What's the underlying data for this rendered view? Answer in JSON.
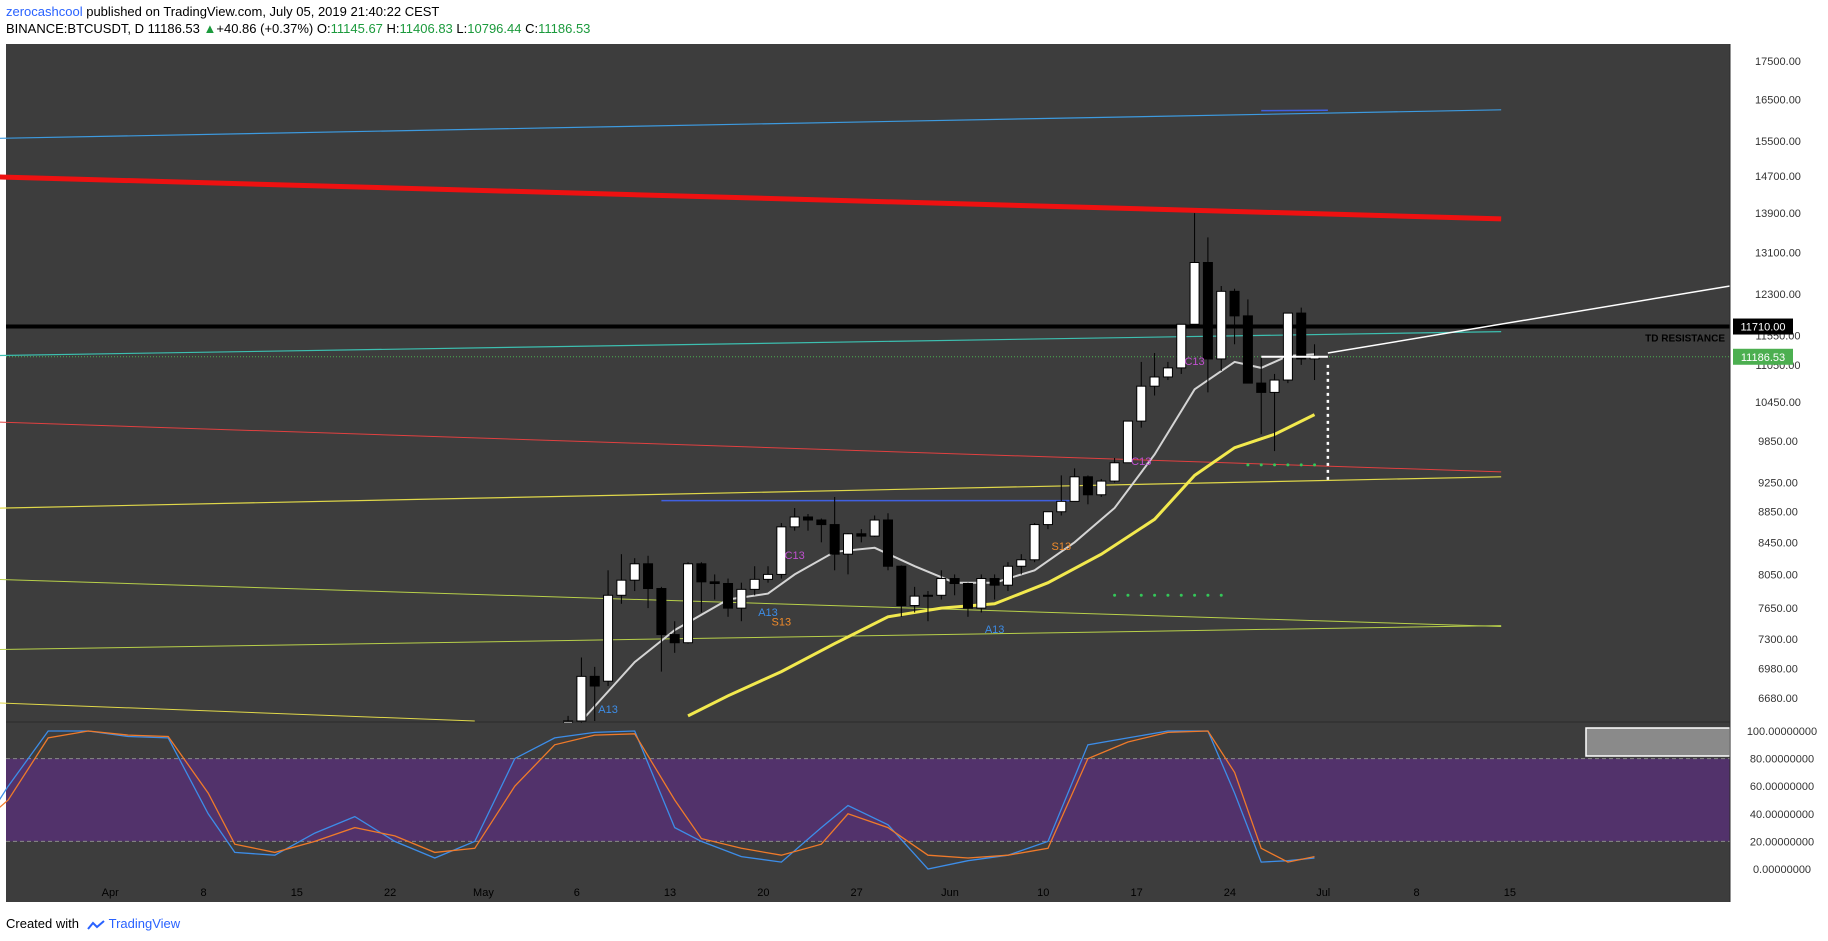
{
  "header": {
    "author": "zerocashcool",
    "published_text": " published on TradingView.com, July 05, 2019 21:40:22 CEST",
    "symbol": "BINANCE:BTCUSDT, D",
    "last": "11186.53",
    "change": "+40.86 (+0.37%)",
    "o_label": "O:",
    "o_value": "11145.67",
    "h_label": "H:",
    "h_value": "11406.83",
    "l_label": "L:",
    "l_value": "10796.44",
    "c_label": "C:",
    "c_value": "11186.53"
  },
  "footer": {
    "created_with": "Created with",
    "brand": "TradingView"
  },
  "colors": {
    "background": "#3d3d3d",
    "up_candle": "#ffffff",
    "down_candle": "#000000",
    "sma_fast": "#d4d4d4",
    "sma_slow": "#f2e94e",
    "resistance": "#ee1111",
    "stoch_k": "#3d8de8",
    "stoch_d": "#ef7a2a",
    "stoch_band": "#52326b",
    "price_badge": "#4caf50"
  },
  "chart_data": {
    "type": "candlestick",
    "x_tick_labels": [
      "Apr",
      "8",
      "15",
      "22",
      "May",
      "6",
      "13",
      "20",
      "27",
      "Jun",
      "10",
      "17",
      "24",
      "Jul",
      "8",
      "15"
    ],
    "y_tick_labels": [
      "17500.00",
      "16500.00",
      "15500.00",
      "14700.00",
      "13900.00",
      "13100.00",
      "12300.00",
      "11550.00",
      "11050.00",
      "10450.00",
      "9850.00",
      "9250.00",
      "8850.00",
      "8450.00",
      "8050.00",
      "7650.00",
      "7300.00",
      "6980.00",
      "6680.00"
    ],
    "y_scale": "log",
    "y_range": [
      6440,
      17950
    ],
    "price_labels": {
      "resistance": "11710.00",
      "last": "11186.53"
    },
    "annotation": "TD RESISTANCE",
    "td_labels": [
      {
        "text": "A13",
        "date": "2019-05-13",
        "price": 6530,
        "color": "#3d8de8"
      },
      {
        "text": "A13",
        "date": "2019-05-25",
        "price": 7560,
        "color": "#3d8de8"
      },
      {
        "text": "S13",
        "date": "2019-05-26",
        "price": 7450,
        "color": "#ef8a2a"
      },
      {
        "text": "C13",
        "date": "2019-05-27",
        "price": 8240,
        "color": "#c050d0"
      },
      {
        "text": "A13",
        "date": "2019-06-11",
        "price": 7370,
        "color": "#3d8de8"
      },
      {
        "text": "S13",
        "date": "2019-06-16",
        "price": 8350,
        "color": "#ef8a2a"
      },
      {
        "text": "C13",
        "date": "2019-06-22",
        "price": 9500,
        "color": "#c050d0"
      },
      {
        "text": "C13",
        "date": "2019-06-26",
        "price": 11050,
        "color": "#c050d0"
      }
    ],
    "candles": [
      {
        "d": "2019-05-10",
        "o": 6350,
        "h": 6500,
        "l": 6200,
        "c": 6450
      },
      {
        "d": "2019-05-11",
        "o": 6450,
        "h": 7100,
        "l": 6400,
        "c": 6900
      },
      {
        "d": "2019-05-12",
        "o": 6900,
        "h": 7000,
        "l": 6450,
        "c": 6800
      },
      {
        "d": "2019-05-13",
        "o": 6850,
        "h": 8100,
        "l": 6800,
        "c": 7800
      },
      {
        "d": "2019-05-14",
        "o": 7800,
        "h": 8300,
        "l": 7700,
        "c": 7980
      },
      {
        "d": "2019-05-15",
        "o": 7980,
        "h": 8250,
        "l": 7850,
        "c": 8180
      },
      {
        "d": "2019-05-16",
        "o": 8180,
        "h": 8280,
        "l": 7650,
        "c": 7880
      },
      {
        "d": "2019-05-17",
        "o": 7880,
        "h": 7900,
        "l": 6950,
        "c": 7350
      },
      {
        "d": "2019-05-18",
        "o": 7350,
        "h": 7500,
        "l": 7150,
        "c": 7260
      },
      {
        "d": "2019-05-19",
        "o": 7260,
        "h": 8200,
        "l": 7250,
        "c": 8180
      },
      {
        "d": "2019-05-20",
        "o": 8180,
        "h": 8200,
        "l": 7600,
        "c": 7960
      },
      {
        "d": "2019-05-21",
        "o": 7960,
        "h": 8050,
        "l": 7750,
        "c": 7940
      },
      {
        "d": "2019-05-22",
        "o": 7940,
        "h": 8000,
        "l": 7550,
        "c": 7650
      },
      {
        "d": "2019-05-23",
        "o": 7650,
        "h": 7950,
        "l": 7500,
        "c": 7870
      },
      {
        "d": "2019-05-24",
        "o": 7870,
        "h": 8150,
        "l": 7800,
        "c": 7990
      },
      {
        "d": "2019-05-25",
        "o": 7990,
        "h": 8150,
        "l": 7950,
        "c": 8050
      },
      {
        "d": "2019-05-26",
        "o": 8050,
        "h": 8700,
        "l": 8000,
        "c": 8650
      },
      {
        "d": "2019-05-27",
        "o": 8650,
        "h": 8900,
        "l": 8600,
        "c": 8780
      },
      {
        "d": "2019-05-28",
        "o": 8780,
        "h": 8820,
        "l": 8600,
        "c": 8740
      },
      {
        "d": "2019-05-29",
        "o": 8740,
        "h": 8760,
        "l": 8450,
        "c": 8680
      },
      {
        "d": "2019-05-30",
        "o": 8680,
        "h": 9050,
        "l": 8100,
        "c": 8300
      },
      {
        "d": "2019-05-31",
        "o": 8300,
        "h": 8570,
        "l": 8050,
        "c": 8560
      },
      {
        "d": "2019-06-01",
        "o": 8560,
        "h": 8620,
        "l": 8450,
        "c": 8530
      },
      {
        "d": "2019-06-02",
        "o": 8530,
        "h": 8800,
        "l": 8520,
        "c": 8740
      },
      {
        "d": "2019-06-03",
        "o": 8740,
        "h": 8830,
        "l": 8100,
        "c": 8150
      },
      {
        "d": "2019-06-04",
        "o": 8150,
        "h": 8160,
        "l": 7550,
        "c": 7680
      },
      {
        "d": "2019-06-05",
        "o": 7680,
        "h": 7900,
        "l": 7600,
        "c": 7790
      },
      {
        "d": "2019-06-06",
        "o": 7790,
        "h": 7850,
        "l": 7500,
        "c": 7800
      },
      {
        "d": "2019-06-07",
        "o": 7800,
        "h": 8100,
        "l": 7750,
        "c": 8000
      },
      {
        "d": "2019-06-08",
        "o": 8000,
        "h": 8050,
        "l": 7800,
        "c": 7940
      },
      {
        "d": "2019-06-09",
        "o": 7940,
        "h": 7950,
        "l": 7550,
        "c": 7650
      },
      {
        "d": "2019-06-10",
        "o": 7650,
        "h": 8050,
        "l": 7600,
        "c": 8000
      },
      {
        "d": "2019-06-11",
        "o": 8000,
        "h": 8050,
        "l": 7750,
        "c": 7920
      },
      {
        "d": "2019-06-12",
        "o": 7920,
        "h": 8200,
        "l": 7850,
        "c": 8150
      },
      {
        "d": "2019-06-13",
        "o": 8150,
        "h": 8300,
        "l": 8050,
        "c": 8230
      },
      {
        "d": "2019-06-14",
        "o": 8230,
        "h": 8700,
        "l": 8200,
        "c": 8680
      },
      {
        "d": "2019-06-15",
        "o": 8680,
        "h": 8850,
        "l": 8620,
        "c": 8850
      },
      {
        "d": "2019-06-16",
        "o": 8850,
        "h": 9350,
        "l": 8800,
        "c": 8990
      },
      {
        "d": "2019-06-17",
        "o": 8990,
        "h": 9450,
        "l": 8990,
        "c": 9330
      },
      {
        "d": "2019-06-18",
        "o": 9330,
        "h": 9350,
        "l": 8950,
        "c": 9080
      },
      {
        "d": "2019-06-19",
        "o": 9080,
        "h": 9300,
        "l": 9050,
        "c": 9270
      },
      {
        "d": "2019-06-20",
        "o": 9270,
        "h": 9600,
        "l": 9250,
        "c": 9530
      },
      {
        "d": "2019-06-21",
        "o": 9530,
        "h": 10150,
        "l": 9530,
        "c": 10150
      },
      {
        "d": "2019-06-22",
        "o": 10150,
        "h": 11100,
        "l": 10050,
        "c": 10700
      },
      {
        "d": "2019-06-23",
        "o": 10700,
        "h": 11250,
        "l": 10550,
        "c": 10850
      },
      {
        "d": "2019-06-24",
        "o": 10850,
        "h": 11100,
        "l": 10800,
        "c": 11000
      },
      {
        "d": "2019-06-25",
        "o": 11000,
        "h": 11750,
        "l": 10900,
        "c": 11750
      },
      {
        "d": "2019-06-26",
        "o": 11750,
        "h": 13900,
        "l": 11700,
        "c": 12900
      },
      {
        "d": "2019-06-27",
        "o": 12900,
        "h": 13400,
        "l": 10600,
        "c": 11150
      },
      {
        "d": "2019-06-28",
        "o": 11150,
        "h": 12450,
        "l": 10950,
        "c": 12350
      },
      {
        "d": "2019-06-29",
        "o": 12350,
        "h": 12400,
        "l": 11400,
        "c": 11900
      },
      {
        "d": "2019-06-30",
        "o": 11900,
        "h": 12200,
        "l": 10800,
        "c": 10750
      },
      {
        "d": "2019-07-01",
        "o": 10750,
        "h": 11200,
        "l": 9950,
        "c": 10600
      },
      {
        "d": "2019-07-02",
        "o": 10600,
        "h": 10900,
        "l": 9700,
        "c": 10800
      },
      {
        "d": "2019-07-03",
        "o": 10800,
        "h": 11950,
        "l": 10750,
        "c": 11950
      },
      {
        "d": "2019-07-04",
        "o": 11950,
        "h": 12050,
        "l": 11050,
        "c": 11150
      },
      {
        "d": "2019-07-05",
        "o": 11150,
        "h": 11400,
        "l": 10800,
        "c": 11186.53
      }
    ],
    "sma_fast": [
      {
        "d": "2019-05-11",
        "v": 6450
      },
      {
        "d": "2019-05-15",
        "v": 7050
      },
      {
        "d": "2019-05-18",
        "v": 7400
      },
      {
        "d": "2019-05-22",
        "v": 7750
      },
      {
        "d": "2019-05-25",
        "v": 7820
      },
      {
        "d": "2019-05-27",
        "v": 8050
      },
      {
        "d": "2019-05-30",
        "v": 8330
      },
      {
        "d": "2019-06-02",
        "v": 8380
      },
      {
        "d": "2019-06-05",
        "v": 8150
      },
      {
        "d": "2019-06-08",
        "v": 7950
      },
      {
        "d": "2019-06-11",
        "v": 7950
      },
      {
        "d": "2019-06-14",
        "v": 8100
      },
      {
        "d": "2019-06-17",
        "v": 8450
      },
      {
        "d": "2019-06-20",
        "v": 8900
      },
      {
        "d": "2019-06-23",
        "v": 9650
      },
      {
        "d": "2019-06-26",
        "v": 10650
      },
      {
        "d": "2019-06-29",
        "v": 11100
      },
      {
        "d": "2019-07-01",
        "v": 11000
      },
      {
        "d": "2019-07-03",
        "v": 11200
      },
      {
        "d": "2019-07-05",
        "v": 11230
      }
    ],
    "sma_slow": [
      {
        "d": "2019-05-19",
        "v": 6500
      },
      {
        "d": "2019-05-22",
        "v": 6700
      },
      {
        "d": "2019-05-26",
        "v": 6950
      },
      {
        "d": "2019-05-30",
        "v": 7250
      },
      {
        "d": "2019-06-03",
        "v": 7550
      },
      {
        "d": "2019-06-07",
        "v": 7650
      },
      {
        "d": "2019-06-11",
        "v": 7700
      },
      {
        "d": "2019-06-15",
        "v": 7950
      },
      {
        "d": "2019-06-19",
        "v": 8300
      },
      {
        "d": "2019-06-23",
        "v": 8750
      },
      {
        "d": "2019-06-26",
        "v": 9350
      },
      {
        "d": "2019-06-29",
        "v": 9750
      },
      {
        "d": "2019-07-02",
        "v": 9950
      },
      {
        "d": "2019-07-05",
        "v": 10250
      }
    ],
    "stoch": {
      "y_tick_labels": [
        "100.00000000",
        "80.00000000",
        "60.00000000",
        "40.00000000",
        "20.00000000",
        "0.00000000"
      ],
      "range": [
        0,
        100
      ],
      "band": [
        20,
        80
      ],
      "k": [
        {
          "d": "2019-03-26",
          "v": 15
        },
        {
          "d": "2019-03-29",
          "v": 60
        },
        {
          "d": "2019-04-01",
          "v": 100
        },
        {
          "d": "2019-04-04",
          "v": 100
        },
        {
          "d": "2019-04-07",
          "v": 96
        },
        {
          "d": "2019-04-10",
          "v": 95
        },
        {
          "d": "2019-04-13",
          "v": 40
        },
        {
          "d": "2019-04-15",
          "v": 12
        },
        {
          "d": "2019-04-18",
          "v": 10
        },
        {
          "d": "2019-04-21",
          "v": 26
        },
        {
          "d": "2019-04-24",
          "v": 38
        },
        {
          "d": "2019-04-27",
          "v": 20
        },
        {
          "d": "2019-04-30",
          "v": 8
        },
        {
          "d": "2019-05-03",
          "v": 20
        },
        {
          "d": "2019-05-06",
          "v": 80
        },
        {
          "d": "2019-05-09",
          "v": 95
        },
        {
          "d": "2019-05-12",
          "v": 99
        },
        {
          "d": "2019-05-15",
          "v": 100
        },
        {
          "d": "2019-05-18",
          "v": 30
        },
        {
          "d": "2019-05-20",
          "v": 20
        },
        {
          "d": "2019-05-23",
          "v": 9
        },
        {
          "d": "2019-05-26",
          "v": 5
        },
        {
          "d": "2019-05-29",
          "v": 30
        },
        {
          "d": "2019-05-31",
          "v": 46
        },
        {
          "d": "2019-06-03",
          "v": 32
        },
        {
          "d": "2019-06-06",
          "v": 0
        },
        {
          "d": "2019-06-09",
          "v": 6
        },
        {
          "d": "2019-06-12",
          "v": 10
        },
        {
          "d": "2019-06-15",
          "v": 20
        },
        {
          "d": "2019-06-18",
          "v": 90
        },
        {
          "d": "2019-06-21",
          "v": 95
        },
        {
          "d": "2019-06-24",
          "v": 100
        },
        {
          "d": "2019-06-27",
          "v": 100
        },
        {
          "d": "2019-06-29",
          "v": 55
        },
        {
          "d": "2019-07-01",
          "v": 5
        },
        {
          "d": "2019-07-03",
          "v": 6
        },
        {
          "d": "2019-07-05",
          "v": 8
        }
      ],
      "d": [
        {
          "d": "2019-03-26",
          "v": 25
        },
        {
          "d": "2019-03-29",
          "v": 50
        },
        {
          "d": "2019-04-01",
          "v": 95
        },
        {
          "d": "2019-04-04",
          "v": 100
        },
        {
          "d": "2019-04-07",
          "v": 97
        },
        {
          "d": "2019-04-10",
          "v": 96
        },
        {
          "d": "2019-04-13",
          "v": 55
        },
        {
          "d": "2019-04-15",
          "v": 18
        },
        {
          "d": "2019-04-18",
          "v": 12
        },
        {
          "d": "2019-04-21",
          "v": 20
        },
        {
          "d": "2019-04-24",
          "v": 30
        },
        {
          "d": "2019-04-27",
          "v": 24
        },
        {
          "d": "2019-04-30",
          "v": 12
        },
        {
          "d": "2019-05-03",
          "v": 15
        },
        {
          "d": "2019-05-06",
          "v": 60
        },
        {
          "d": "2019-05-09",
          "v": 90
        },
        {
          "d": "2019-05-12",
          "v": 97
        },
        {
          "d": "2019-05-15",
          "v": 98
        },
        {
          "d": "2019-05-18",
          "v": 50
        },
        {
          "d": "2019-05-20",
          "v": 22
        },
        {
          "d": "2019-05-23",
          "v": 15
        },
        {
          "d": "2019-05-26",
          "v": 10
        },
        {
          "d": "2019-05-29",
          "v": 18
        },
        {
          "d": "2019-05-31",
          "v": 40
        },
        {
          "d": "2019-06-03",
          "v": 30
        },
        {
          "d": "2019-06-06",
          "v": 10
        },
        {
          "d": "2019-06-09",
          "v": 8
        },
        {
          "d": "2019-06-12",
          "v": 10
        },
        {
          "d": "2019-06-15",
          "v": 15
        },
        {
          "d": "2019-06-18",
          "v": 80
        },
        {
          "d": "2019-06-21",
          "v": 92
        },
        {
          "d": "2019-06-24",
          "v": 99
        },
        {
          "d": "2019-06-27",
          "v": 100
        },
        {
          "d": "2019-06-29",
          "v": 70
        },
        {
          "d": "2019-07-01",
          "v": 15
        },
        {
          "d": "2019-07-03",
          "v": 5
        },
        {
          "d": "2019-07-05",
          "v": 9
        }
      ]
    }
  }
}
